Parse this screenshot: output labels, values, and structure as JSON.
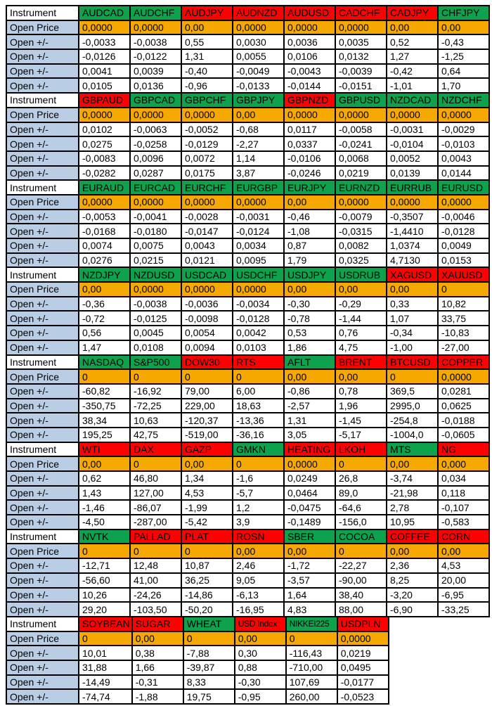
{
  "colors": {
    "header_green": "#0FA24C",
    "header_red": "#FE0000",
    "price_orange": "#F4A800",
    "label_blue": "#B9CDE5",
    "border_black": "#000000",
    "text_black": "#000000",
    "cell_white": "#FFFFFF"
  },
  "row_labels": {
    "instrument": "Instrument",
    "open_price": "Open Price",
    "open_delta": "Open +/-"
  },
  "blocks": [
    {
      "instruments": [
        {
          "name": "AUDCAD",
          "color": "green"
        },
        {
          "name": "AUDCHF",
          "color": "green"
        },
        {
          "name": "AUDJPY",
          "color": "red"
        },
        {
          "name": "AUDNZD",
          "color": "red"
        },
        {
          "name": "AUDUSD",
          "color": "red"
        },
        {
          "name": "CADCHF",
          "color": "red"
        },
        {
          "name": "CADJPY",
          "color": "red"
        },
        {
          "name": "CHFJPY",
          "color": "green"
        }
      ],
      "open_price": [
        "0,0000",
        "0,0000",
        "0,00",
        "0,0000",
        "0,0000",
        "0,0000",
        "0,00",
        "0,00"
      ],
      "open_deltas": [
        [
          "-0,0033",
          "-0,0038",
          "0,55",
          "0,0030",
          "0,0036",
          "0,0035",
          "0,52",
          "-0,43"
        ],
        [
          "-0,0126",
          "-0,0122",
          "1,31",
          "0,0055",
          "0,0106",
          "0,0132",
          "1,27",
          "-1,25"
        ],
        [
          "0,0041",
          "0,0039",
          "-0,40",
          "-0,0049",
          "-0,0043",
          "-0,0039",
          "-0,42",
          "0,64"
        ],
        [
          "0,0105",
          "0,0136",
          "-0,96",
          "-0,0133",
          "-0,0144",
          "-0,0151",
          "-1,01",
          "1,70"
        ]
      ]
    },
    {
      "instruments": [
        {
          "name": "GBPAUD",
          "color": "red"
        },
        {
          "name": "GBPCAD",
          "color": "green"
        },
        {
          "name": "GBPCHF",
          "color": "green"
        },
        {
          "name": "GBPJPY",
          "color": "green"
        },
        {
          "name": "GBPNZD",
          "color": "red"
        },
        {
          "name": "GBPUSD",
          "color": "green"
        },
        {
          "name": "NZDCAD",
          "color": "green"
        },
        {
          "name": "NZDCHF",
          "color": "green"
        }
      ],
      "open_price": [
        "0,0000",
        "0,0000",
        "0,0000",
        "0,00",
        "0,0000",
        "0,0000",
        "0,0000",
        "0,0000"
      ],
      "open_deltas": [
        [
          "0,0102",
          "-0,0063",
          "-0,0052",
          "-0,68",
          "0,0117",
          "-0,0058",
          "-0,0031",
          "-0,0029"
        ],
        [
          "0,0275",
          "-0,0258",
          "-0,0129",
          "-2,27",
          "0,0337",
          "-0,0241",
          "-0,0104",
          "-0,0103"
        ],
        [
          "-0,0083",
          "0,0096",
          "0,0072",
          "1,14",
          "-0,0106",
          "0,0068",
          "0,0052",
          "0,0043"
        ],
        [
          "-0,0282",
          "0,0287",
          "0,0175",
          "3,87",
          "-0,0246",
          "0,0219",
          "0,0139",
          "0,0144"
        ]
      ]
    },
    {
      "instruments": [
        {
          "name": "EURAUD",
          "color": "green"
        },
        {
          "name": "EURCAD",
          "color": "green"
        },
        {
          "name": "EURCHF",
          "color": "green"
        },
        {
          "name": "EURGBP",
          "color": "green"
        },
        {
          "name": "EURJPY",
          "color": "green"
        },
        {
          "name": "EURNZD",
          "color": "green"
        },
        {
          "name": "EURRUB",
          "color": "green"
        },
        {
          "name": "EURUSD",
          "color": "green"
        }
      ],
      "open_price": [
        "0,0000",
        "0,0000",
        "0,0000",
        "0,0000",
        "0,00",
        "0,0000",
        "0,0000",
        "0,0000"
      ],
      "open_deltas": [
        [
          "-0,0053",
          "-0,0041",
          "-0,0028",
          "-0,0031",
          "-0,46",
          "-0,0079",
          "-0,3507",
          "-0,0046"
        ],
        [
          "-0,0168",
          "-0,0180",
          "-0,0147",
          "-0,0124",
          "-1,08",
          "-0,0315",
          "-1,4410",
          "-0,0128"
        ],
        [
          "0,0074",
          "0,0075",
          "0,0043",
          "0,0034",
          "0,87",
          "0,0082",
          "1,0374",
          "0,0049"
        ],
        [
          "0,0276",
          "0,0215",
          "0,0121",
          "0,0095",
          "1,79",
          "0,0325",
          "4,7130",
          "0,0153"
        ]
      ]
    },
    {
      "instruments": [
        {
          "name": "NZDJPY",
          "color": "green"
        },
        {
          "name": "NZDUSD",
          "color": "green"
        },
        {
          "name": "USDCAD",
          "color": "green"
        },
        {
          "name": "USDCHF",
          "color": "green"
        },
        {
          "name": "USDJPY",
          "color": "green"
        },
        {
          "name": "USDRUB",
          "color": "green"
        },
        {
          "name": "XAGUSD",
          "color": "red"
        },
        {
          "name": "XAUUSD",
          "color": "red"
        }
      ],
      "open_price": [
        "0,00",
        "0,0000",
        "0,0000",
        "0,0000",
        "0,00",
        "0,00",
        "0,00",
        "0"
      ],
      "open_deltas": [
        [
          "-0,36",
          "-0,0038",
          "-0,0036",
          "-0,0034",
          "-0,30",
          "-0,29",
          "0,33",
          "10,82"
        ],
        [
          "-0,72",
          "-0,0125",
          "-0,0098",
          "-0,0128",
          "-0,78",
          "-1,44",
          "1,07",
          "33,75"
        ],
        [
          "0,56",
          "0,0045",
          "0,0054",
          "0,0042",
          "0,53",
          "0,76",
          "-0,34",
          "-10,83"
        ],
        [
          "1,47",
          "0,0108",
          "0,0094",
          "0,0103",
          "1,86",
          "4,75",
          "-1,00",
          "-27,00"
        ]
      ]
    },
    {
      "instruments": [
        {
          "name": "NASDAQ",
          "color": "green"
        },
        {
          "name": "S&P500",
          "color": "green"
        },
        {
          "name": "DOW30",
          "color": "red"
        },
        {
          "name": "RTS",
          "color": "red"
        },
        {
          "name": "AFLT",
          "color": "green"
        },
        {
          "name": "BRENT",
          "color": "red"
        },
        {
          "name": "BTCUSD",
          "color": "red"
        },
        {
          "name": "COPPER",
          "color": "red"
        }
      ],
      "open_price": [
        "0",
        "0",
        "0",
        "0",
        "0,00",
        "0,00",
        "0",
        "0,0000"
      ],
      "open_deltas": [
        [
          "-60,82",
          "-16,92",
          "79,00",
          "6,00",
          "-0,86",
          "0,78",
          "369,5",
          "0,0281"
        ],
        [
          "-350,75",
          "-72,25",
          "229,00",
          "18,63",
          "-2,57",
          "1,96",
          "2995,0",
          "0,0625"
        ],
        [
          "38,34",
          "10,63",
          "-120,37",
          "-13,36",
          "1,31",
          "-1,45",
          "-254,8",
          "-0,0188"
        ],
        [
          "195,25",
          "42,75",
          "-519,00",
          "-36,16",
          "3,05",
          "-5,17",
          "-1004,0",
          "-0,0605"
        ]
      ]
    },
    {
      "instruments": [
        {
          "name": "WTI",
          "color": "red"
        },
        {
          "name": "DAX",
          "color": "red"
        },
        {
          "name": "GAZP",
          "color": "red"
        },
        {
          "name": "GMKN",
          "color": "green"
        },
        {
          "name": "HEATING",
          "color": "red"
        },
        {
          "name": "LKOH",
          "color": "red"
        },
        {
          "name": "MTS",
          "color": "green"
        },
        {
          "name": "NG",
          "color": "red"
        }
      ],
      "open_price": [
        "0,00",
        "0",
        "0,00",
        "0",
        "0,0000",
        "0",
        "0,00",
        "0,000"
      ],
      "open_deltas": [
        [
          "0,62",
          "46,80",
          "1,34",
          "-1,6",
          "0,0249",
          "26,8",
          "-3,74",
          "0,034"
        ],
        [
          "1,43",
          "127,00",
          "4,53",
          "-5,7",
          "0,0464",
          "89,0",
          "-21,98",
          "0,118"
        ],
        [
          "-1,46",
          "-86,07",
          "-1,99",
          "1,2",
          "-0,0475",
          "-64,6",
          "2,78",
          "-0,107"
        ],
        [
          "-4,50",
          "-287,00",
          "-5,42",
          "3,9",
          "-0,1489",
          "-156,0",
          "10,95",
          "-0,583"
        ]
      ]
    },
    {
      "instruments": [
        {
          "name": "NVTK",
          "color": "green"
        },
        {
          "name": "PALLAD",
          "color": "red"
        },
        {
          "name": "PLAT",
          "color": "red"
        },
        {
          "name": "ROSN",
          "color": "red"
        },
        {
          "name": "SBER",
          "color": "green"
        },
        {
          "name": "COCOA",
          "color": "green"
        },
        {
          "name": "COFFEE",
          "color": "red"
        },
        {
          "name": "CORN",
          "color": "red"
        }
      ],
      "open_price": [
        "0",
        "0",
        "0",
        "0,00",
        "0,00",
        "0",
        "0,00",
        "0,00"
      ],
      "open_deltas": [
        [
          "-12,71",
          "12,48",
          "10,87",
          "2,46",
          "-1,72",
          "-22,27",
          "2,36",
          "4,53"
        ],
        [
          "-56,60",
          "41,00",
          "36,25",
          "9,05",
          "-3,57",
          "-90,00",
          "8,25",
          "20,00"
        ],
        [
          "10,26",
          "-24,26",
          "-14,86",
          "-6,13",
          "1,64",
          "38,40",
          "-3,20",
          "-6,95"
        ],
        [
          "29,20",
          "-103,50",
          "-50,20",
          "-16,95",
          "4,83",
          "88,00",
          "-6,90",
          "-33,25"
        ]
      ]
    },
    {
      "instruments": [
        {
          "name": "SOYBEAN",
          "color": "red"
        },
        {
          "name": "SUGAR",
          "color": "red"
        },
        {
          "name": "WHEAT",
          "color": "green"
        },
        {
          "name": "USD Index",
          "color": "red"
        },
        {
          "name": "NIKKEI225",
          "color": "green"
        },
        {
          "name": "USDPLN",
          "color": "red"
        }
      ],
      "open_price": [
        "0",
        "0,00",
        "0",
        "0,00",
        "0",
        "0,0000"
      ],
      "open_deltas": [
        [
          "10,01",
          "0,38",
          "-7,88",
          "0,30",
          "-116,43",
          "0,0219"
        ],
        [
          "31,88",
          "1,66",
          "-39,87",
          "0,88",
          "-710,00",
          "0,0495"
        ],
        [
          "-14,49",
          "-0,31",
          "8,33",
          "-0,30",
          "107,69",
          "-0,0177"
        ],
        [
          "-74,74",
          "-1,88",
          "19,75",
          "-0,95",
          "260,00",
          "-0,0523"
        ]
      ]
    }
  ]
}
